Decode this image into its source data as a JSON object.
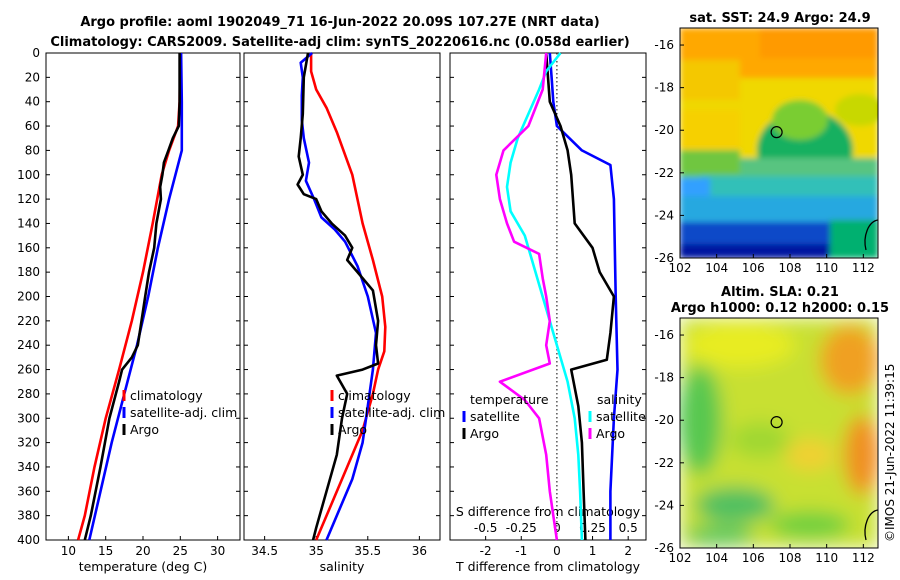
{
  "titles": {
    "line1": "Argo profile: aoml 1902049_71 16-Jun-2022 20.09S 107.27E (NRT data)",
    "line2": "Climatology: CARS2009. Satellite-adj clim: synTS_20220616.nc (0.058d earlier)",
    "sst": "sat. SST: 24.9 Argo: 24.9",
    "sla1": "Altim. SLA: 0.21",
    "sla2": "Argo h1000: 0.12 h2000: 0.15",
    "credit": "©IMOS 21-Jun-2022 11:39:15"
  },
  "colors": {
    "climatology": "#ff0000",
    "satellite": "#0000ff",
    "argo": "#000000",
    "t_diff": "#00ffff",
    "s_diff": "#ff00ff"
  },
  "chart_data": [
    {
      "type": "line",
      "id": "temperature",
      "xlabel": "temperature (deg C)",
      "ylabel": "",
      "xlim": [
        7,
        33
      ],
      "ylim": [
        400,
        0
      ],
      "xticks": [
        "10",
        "15",
        "20",
        "25",
        "30"
      ],
      "xtick_values": [
        10,
        15,
        20,
        25,
        30
      ],
      "yticks": [
        "0",
        "20",
        "40",
        "60",
        "80",
        "100",
        "120",
        "140",
        "160",
        "180",
        "200",
        "220",
        "240",
        "260",
        "280",
        "300",
        "320",
        "340",
        "360",
        "380",
        "400"
      ],
      "legend": [
        "climatology",
        "satellite-adj. clim",
        "Argo"
      ],
      "series": [
        {
          "name": "climatology",
          "color": "#ff0000",
          "points": [
            [
              25,
              0
            ],
            [
              24.9,
              40
            ],
            [
              24.7,
              60
            ],
            [
              23.5,
              80
            ],
            [
              22.5,
              100
            ],
            [
              21.3,
              140
            ],
            [
              20,
              180
            ],
            [
              18.5,
              220
            ],
            [
              16.8,
              260
            ],
            [
              15,
              300
            ],
            [
              13.5,
              340
            ],
            [
              12.2,
              380
            ],
            [
              11.3,
              400
            ]
          ]
        },
        {
          "name": "satellite-adj. clim",
          "color": "#0000ff",
          "points": [
            [
              25.1,
              0
            ],
            [
              25.2,
              40
            ],
            [
              25.2,
              60
            ],
            [
              25.2,
              80
            ],
            [
              23.5,
              120
            ],
            [
              22,
              160
            ],
            [
              20.7,
              200
            ],
            [
              19.2,
              240
            ],
            [
              17.5,
              280
            ],
            [
              15.8,
              320
            ],
            [
              14.3,
              360
            ],
            [
              12.8,
              400
            ]
          ]
        },
        {
          "name": "Argo",
          "color": "#000000",
          "points": [
            [
              24.9,
              0
            ],
            [
              24.9,
              40
            ],
            [
              24.8,
              60
            ],
            [
              24,
              70
            ],
            [
              23.4,
              80
            ],
            [
              22.8,
              90
            ],
            [
              22.6,
              100
            ],
            [
              22.3,
              110
            ],
            [
              22.4,
              120
            ],
            [
              21.8,
              140
            ],
            [
              21.5,
              160
            ],
            [
              20.8,
              180
            ],
            [
              20.3,
              200
            ],
            [
              19.8,
              220
            ],
            [
              19.3,
              240
            ],
            [
              18.5,
              250
            ],
            [
              17.2,
              260
            ],
            [
              16.8,
              270
            ],
            [
              15.5,
              300
            ],
            [
              14.3,
              340
            ],
            [
              13,
              380
            ],
            [
              12.2,
              400
            ]
          ]
        }
      ]
    },
    {
      "type": "line",
      "id": "salinity",
      "xlabel": "salinity",
      "ylabel": "",
      "xlim": [
        34.3,
        36.2
      ],
      "ylim": [
        400,
        0
      ],
      "xticks": [
        "34.5",
        "35",
        "35.5",
        "36"
      ],
      "xtick_values": [
        34.5,
        35,
        35.5,
        36
      ],
      "legend": [
        "climatology",
        "satellite-adj. clim",
        "Argo"
      ],
      "series": [
        {
          "name": "climatology",
          "color": "#ff0000",
          "points": [
            [
              34.95,
              0
            ],
            [
              34.95,
              15
            ],
            [
              35.0,
              30
            ],
            [
              35.1,
              45
            ],
            [
              35.2,
              65
            ],
            [
              35.35,
              100
            ],
            [
              35.45,
              140
            ],
            [
              35.55,
              170
            ],
            [
              35.64,
              200
            ],
            [
              35.67,
              225
            ],
            [
              35.66,
              245
            ],
            [
              35.6,
              260
            ],
            [
              35.55,
              280
            ],
            [
              35.45,
              310
            ],
            [
              35.3,
              340
            ],
            [
              35.15,
              370
            ],
            [
              35.0,
              400
            ]
          ]
        },
        {
          "name": "satellite-adj. clim",
          "color": "#0000ff",
          "points": [
            [
              34.96,
              0
            ],
            [
              34.85,
              8
            ],
            [
              34.87,
              20
            ],
            [
              34.86,
              35
            ],
            [
              34.86,
              55
            ],
            [
              34.88,
              70
            ],
            [
              34.93,
              90
            ],
            [
              34.9,
              105
            ],
            [
              34.98,
              120
            ],
            [
              35.05,
              135
            ],
            [
              35.18,
              145
            ],
            [
              35.28,
              155
            ],
            [
              35.4,
              175
            ],
            [
              35.5,
              200
            ],
            [
              35.58,
              230
            ],
            [
              35.55,
              260
            ],
            [
              35.5,
              290
            ],
            [
              35.45,
              320
            ],
            [
              35.35,
              350
            ],
            [
              35.2,
              380
            ],
            [
              35.1,
              400
            ]
          ]
        },
        {
          "name": "Argo",
          "color": "#000000",
          "points": [
            [
              34.92,
              0
            ],
            [
              34.88,
              20
            ],
            [
              34.87,
              50
            ],
            [
              34.85,
              70
            ],
            [
              34.83,
              85
            ],
            [
              34.87,
              100
            ],
            [
              34.82,
              108
            ],
            [
              34.88,
              116
            ],
            [
              35.0,
              120
            ],
            [
              35.05,
              130
            ],
            [
              35.15,
              140
            ],
            [
              35.28,
              150
            ],
            [
              35.35,
              160
            ],
            [
              35.3,
              170
            ],
            [
              35.4,
              180
            ],
            [
              35.55,
              195
            ],
            [
              35.6,
              220
            ],
            [
              35.58,
              240
            ],
            [
              35.6,
              255
            ],
            [
              35.45,
              260
            ],
            [
              35.2,
              265
            ],
            [
              35.3,
              280
            ],
            [
              35.25,
              300
            ],
            [
              35.2,
              330
            ],
            [
              35.1,
              360
            ],
            [
              35.0,
              390
            ],
            [
              34.97,
              400
            ]
          ]
        }
      ]
    },
    {
      "type": "line",
      "id": "difference",
      "xlabel": "T difference from climatology",
      "xlabel_top": "S difference from climatology",
      "xlim": [
        -3,
        2.5
      ],
      "ylim": [
        400,
        0
      ],
      "xticks": [
        "-2",
        "-1",
        "0",
        "1",
        "2"
      ],
      "xtick_values": [
        -2,
        -1,
        0,
        1,
        2
      ],
      "s_xticks": [
        "-0.5",
        "-0.25",
        "0",
        "0.25",
        "0.5"
      ],
      "s_xtick_positions": [
        -2,
        -1,
        0,
        1,
        2
      ],
      "legend_left_title": "temperature",
      "legend_right_title": "salinity",
      "legend_left": [
        "satellite",
        "Argo"
      ],
      "legend_right": [
        "satellite",
        "Argo"
      ],
      "series": [
        {
          "name": "temperature satellite",
          "color": "#0000ff",
          "points": [
            [
              -0.2,
              0
            ],
            [
              -0.15,
              20
            ],
            [
              -0.1,
              40
            ],
            [
              0,
              60
            ],
            [
              0.7,
              80
            ],
            [
              1.5,
              92
            ],
            [
              1.6,
              120
            ],
            [
              1.65,
              200
            ],
            [
              1.7,
              260
            ],
            [
              1.6,
              300
            ],
            [
              1.5,
              360
            ],
            [
              1.5,
              400
            ]
          ]
        },
        {
          "name": "temperature Argo",
          "color": "#000000",
          "points": [
            [
              -0.3,
              0
            ],
            [
              -0.2,
              40
            ],
            [
              0.1,
              60
            ],
            [
              0.3,
              80
            ],
            [
              0.4,
              100
            ],
            [
              0.5,
              140
            ],
            [
              1.0,
              160
            ],
            [
              1.2,
              180
            ],
            [
              1.6,
              200
            ],
            [
              1.5,
              230
            ],
            [
              1.4,
              252
            ],
            [
              0.4,
              260
            ],
            [
              0.6,
              290
            ],
            [
              0.7,
              320
            ],
            [
              0.75,
              360
            ],
            [
              0.8,
              400
            ]
          ]
        },
        {
          "name": "salinity satellite",
          "color": "#00ffff",
          "points": [
            [
              0.1,
              0
            ],
            [
              -0.3,
              15
            ],
            [
              -0.5,
              30
            ],
            [
              -0.8,
              50
            ],
            [
              -1.1,
              70
            ],
            [
              -1.3,
              90
            ],
            [
              -1.4,
              110
            ],
            [
              -1.3,
              130
            ],
            [
              -0.9,
              150
            ],
            [
              -0.6,
              180
            ],
            [
              -0.3,
              210
            ],
            [
              0,
              240
            ],
            [
              0.3,
              270
            ],
            [
              0.5,
              300
            ],
            [
              0.6,
              330
            ],
            [
              0.65,
              360
            ],
            [
              0.7,
              400
            ]
          ]
        },
        {
          "name": "salinity Argo",
          "color": "#ff00ff",
          "points": [
            [
              -0.3,
              0
            ],
            [
              -0.4,
              30
            ],
            [
              -0.8,
              60
            ],
            [
              -1.5,
              80
            ],
            [
              -1.7,
              100
            ],
            [
              -1.6,
              120
            ],
            [
              -1.4,
              140
            ],
            [
              -1.2,
              155
            ],
            [
              -0.5,
              165
            ],
            [
              -0.4,
              185
            ],
            [
              -0.3,
              200
            ],
            [
              -0.2,
              220
            ],
            [
              -0.3,
              240
            ],
            [
              -0.2,
              255
            ],
            [
              -1.6,
              270
            ],
            [
              -0.9,
              285
            ],
            [
              -0.5,
              300
            ],
            [
              -0.3,
              330
            ],
            [
              -0.2,
              360
            ],
            [
              -0.1,
              380
            ],
            [
              0,
              400
            ]
          ]
        }
      ]
    },
    {
      "type": "heatmap",
      "id": "sst_map",
      "title": "sat. SST: 24.9 Argo: 24.9",
      "xticks": [
        "102",
        "104",
        "106",
        "108",
        "110",
        "112"
      ],
      "xtick_values": [
        102,
        104,
        106,
        108,
        110,
        112
      ],
      "yticks": [
        "-16",
        "-18",
        "-20",
        "-22",
        "-24",
        "-26"
      ],
      "ytick_values": [
        -16,
        -18,
        -20,
        -22,
        -24,
        -26
      ],
      "xlim": [
        102,
        112.8
      ],
      "ylim": [
        -26,
        -15.2
      ],
      "marker": [
        107.27,
        -20.09
      ]
    },
    {
      "type": "heatmap",
      "id": "sla_map",
      "title": "Altim. SLA: 0.21",
      "xticks": [
        "102",
        "104",
        "106",
        "108",
        "110",
        "112"
      ],
      "xtick_values": [
        102,
        104,
        106,
        108,
        110,
        112
      ],
      "yticks": [
        "-16",
        "-18",
        "-20",
        "-22",
        "-24",
        "-26"
      ],
      "ytick_values": [
        -16,
        -18,
        -20,
        -22,
        -24,
        -26
      ],
      "xlim": [
        102,
        112.8
      ],
      "ylim": [
        -26,
        -15.2
      ],
      "marker": [
        107.27,
        -20.09
      ]
    }
  ]
}
